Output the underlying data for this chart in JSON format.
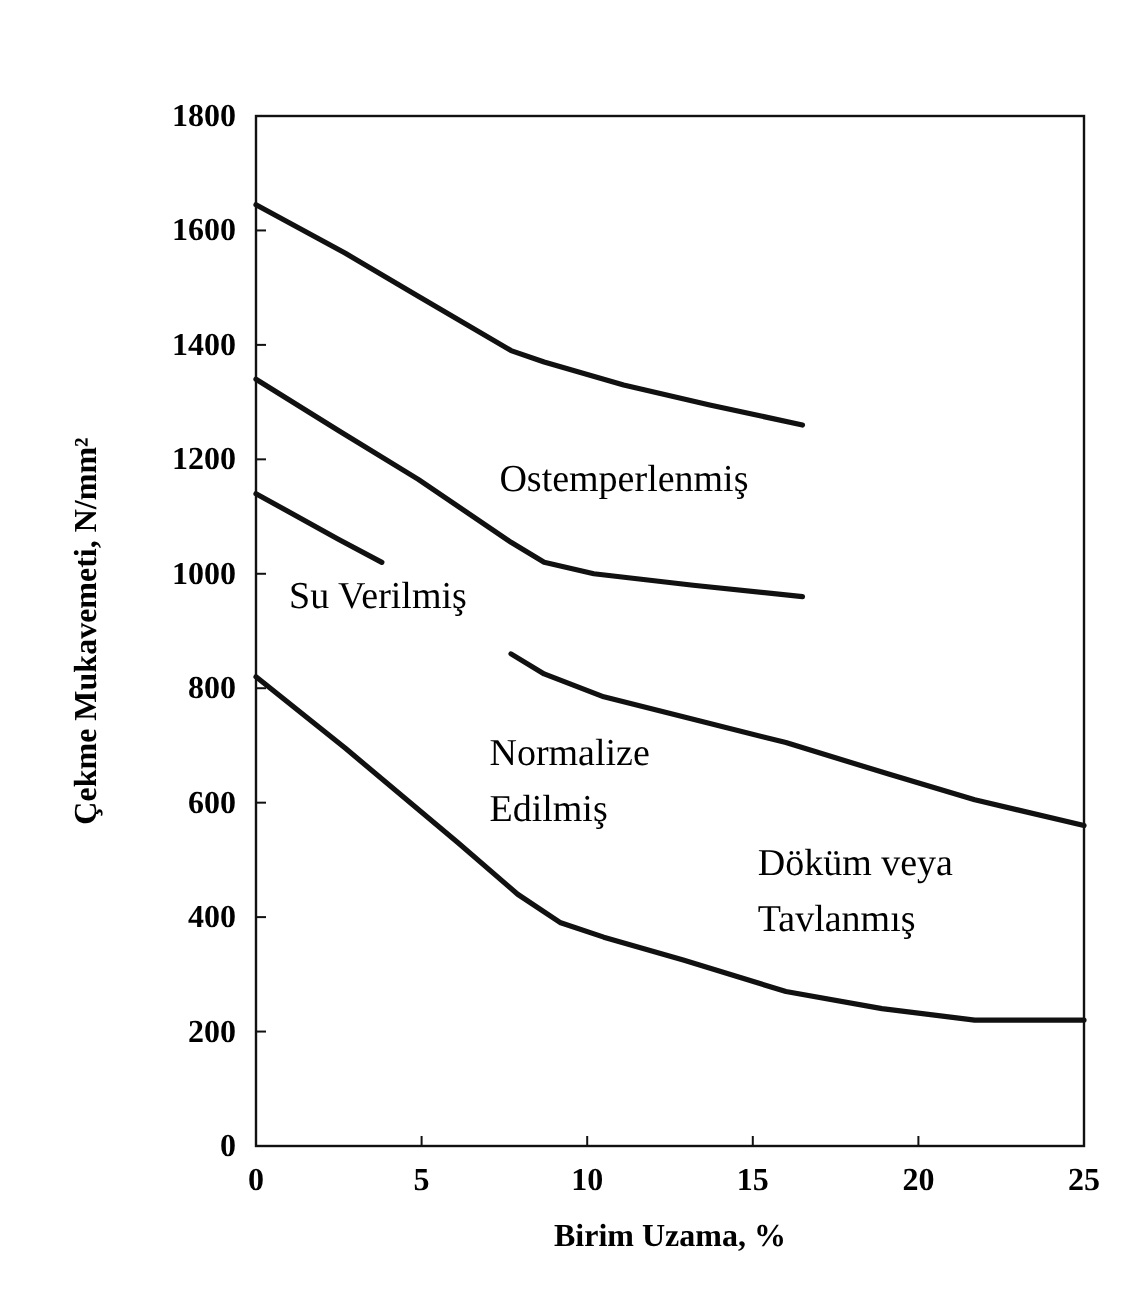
{
  "chart_data": {
    "type": "line",
    "xlabel": "Birim Uzama, %",
    "ylabel": "Çekme Mukavemeti, N/mm²",
    "xlim": [
      0,
      25
    ],
    "ylim": [
      0,
      1800
    ],
    "xticks": [
      0,
      5,
      10,
      15,
      20,
      25
    ],
    "yticks": [
      0,
      200,
      400,
      600,
      800,
      1000,
      1200,
      1400,
      1600,
      1800
    ],
    "grid": false,
    "marker": "none",
    "line_style": "solid",
    "series": [
      {
        "color": "#111111",
        "x": [
          0,
          2.7,
          4.9,
          7.7,
          8.7,
          11.1,
          13.7,
          16.5
        ],
        "values": [
          1645,
          1560,
          1485,
          1390,
          1370,
          1330,
          1295,
          1260
        ]
      },
      {
        "color": "#111111",
        "x": [
          0,
          2.5,
          4.9,
          7.7,
          8.7,
          10.2,
          13.2,
          16.5
        ],
        "values": [
          1340,
          1250,
          1165,
          1055,
          1020,
          1000,
          980,
          960
        ]
      },
      {
        "color": "#111111",
        "x": [
          0,
          2.5,
          3.8,
          3.9,
          7.7,
          8.7,
          10.5,
          12.9,
          16,
          19.1,
          21.7,
          25
        ],
        "values": [
          1140,
          1060,
          1020,
          null,
          860,
          825,
          785,
          750,
          705,
          650,
          605,
          560
        ]
      },
      {
        "color": "#111111",
        "x": [
          0,
          2.7,
          6.1,
          7.9,
          9.2,
          10.5,
          12.9,
          16,
          18.9,
          21.7,
          25
        ],
        "values": [
          820,
          695,
          530,
          440,
          390,
          365,
          325,
          270,
          240,
          220,
          220
        ]
      }
    ],
    "annotations": [
      "Ostemperlenmiş",
      "Su Verilmiş",
      "Normalize\nEdilmiş",
      "Döküm veya\nTavlanmış"
    ]
  }
}
